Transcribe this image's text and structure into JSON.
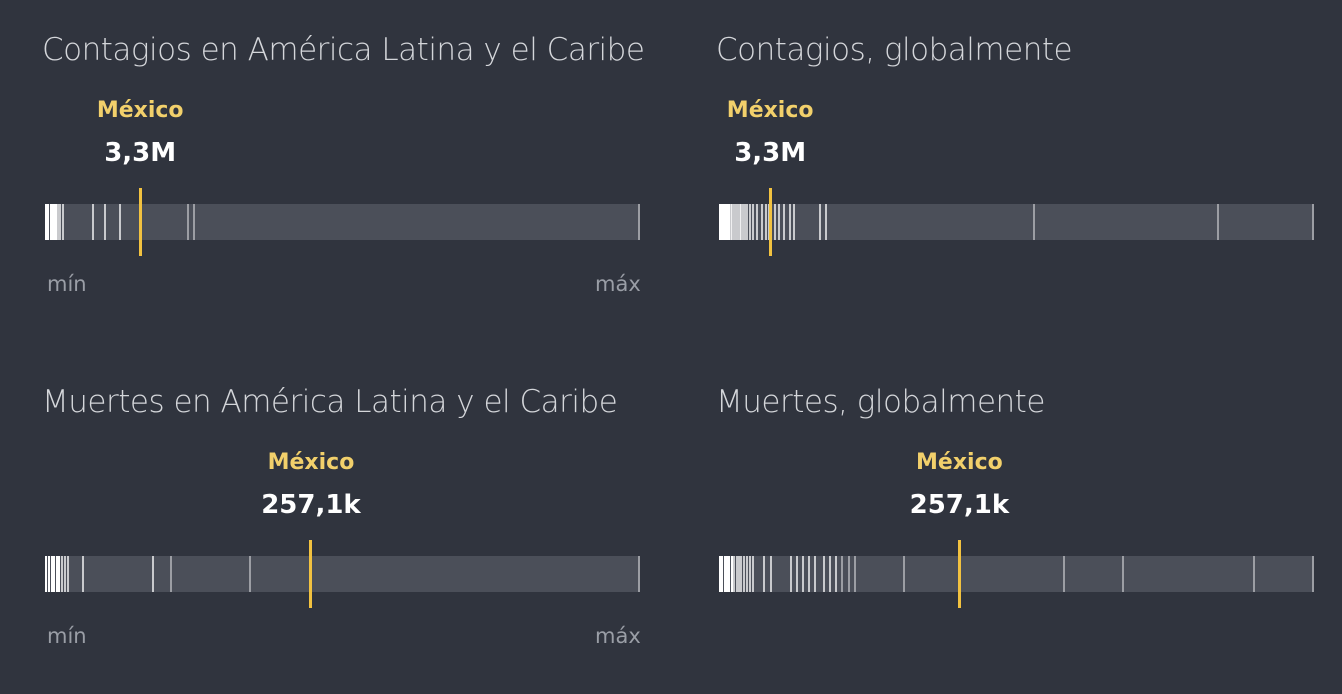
{
  "chart_data": [
    {
      "type": "strip",
      "title": "Contagios en América Latina y el Caribe",
      "highlight": {
        "label": "México",
        "value_text": "3,3M",
        "fraction": 0.16
      },
      "tick_fractions": [
        0.0,
        0.004,
        0.008,
        0.011,
        0.014,
        0.017,
        0.021,
        0.024,
        0.028,
        0.08,
        0.1,
        0.125,
        0.24,
        0.25,
        1.0
      ],
      "min_label": "mín",
      "max_label": "máx"
    },
    {
      "type": "strip",
      "title": "Contagios, globalmente",
      "highlight": {
        "label": "México",
        "value_text": "3,3M",
        "fraction": 0.086
      },
      "tick_fractions": [
        0.0,
        0.003,
        0.006,
        0.009,
        0.012,
        0.015,
        0.018,
        0.021,
        0.024,
        0.027,
        0.03,
        0.033,
        0.036,
        0.039,
        0.042,
        0.046,
        0.05,
        0.055,
        0.062,
        0.07,
        0.077,
        0.083,
        0.092,
        0.1,
        0.108,
        0.118,
        0.125,
        0.168,
        0.178,
        0.53,
        0.84,
        1.0
      ],
      "min_label": "",
      "max_label": ""
    },
    {
      "type": "strip",
      "title": "Muertes en América Latina y el Caribe",
      "highlight": {
        "label": "México",
        "value_text": "257,1k",
        "fraction": 0.447
      },
      "tick_fractions": [
        0.0,
        0.005,
        0.01,
        0.014,
        0.018,
        0.022,
        0.027,
        0.032,
        0.037,
        0.062,
        0.18,
        0.21,
        0.344,
        1.0
      ],
      "min_label": "mín",
      "max_label": "máx"
    },
    {
      "type": "strip",
      "title": "Muertes, globalmente",
      "highlight": {
        "label": "México",
        "value_text": "257,1k",
        "fraction": 0.404
      },
      "tick_fractions": [
        0.0,
        0.004,
        0.008,
        0.012,
        0.016,
        0.02,
        0.024,
        0.028,
        0.032,
        0.036,
        0.04,
        0.045,
        0.05,
        0.056,
        0.075,
        0.086,
        0.12,
        0.13,
        0.14,
        0.15,
        0.16,
        0.175,
        0.185,
        0.195,
        0.205,
        0.218,
        0.228,
        0.31,
        0.58,
        0.68,
        0.9,
        1.0
      ],
      "min_label": "",
      "max_label": ""
    }
  ]
}
